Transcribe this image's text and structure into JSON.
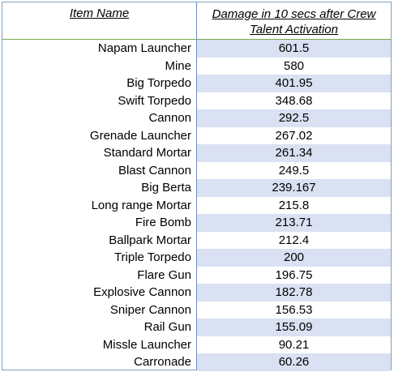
{
  "table": {
    "headers": {
      "item_name": "Item Name",
      "damage_line1": "Damage in 10 secs after Crew",
      "damage_line2": "Talent Activation"
    },
    "rows": [
      {
        "name": "Napam Launcher",
        "value": "601.5"
      },
      {
        "name": "Mine",
        "value": "580"
      },
      {
        "name": "Big Torpedo",
        "value": "401.95"
      },
      {
        "name": "Swift Torpedo",
        "value": "348.68"
      },
      {
        "name": "Cannon",
        "value": "292.5"
      },
      {
        "name": "Grenade Launcher",
        "value": "267.02"
      },
      {
        "name": "Standard Mortar",
        "value": "261.34"
      },
      {
        "name": "Blast Cannon",
        "value": "249.5"
      },
      {
        "name": "Big Berta",
        "value": "239.167"
      },
      {
        "name": "Long range Mortar",
        "value": "215.8"
      },
      {
        "name": "Fire Bomb",
        "value": "213.71"
      },
      {
        "name": "Ballpark Mortar",
        "value": "212.4"
      },
      {
        "name": "Triple Torpedo",
        "value": "200"
      },
      {
        "name": "Flare Gun",
        "value": "196.75"
      },
      {
        "name": "Explosive Cannon",
        "value": "182.78"
      },
      {
        "name": "Sniper Cannon",
        "value": "156.53"
      },
      {
        "name": "Rail Gun",
        "value": "155.09"
      },
      {
        "name": "Missle Launcher",
        "value": "90.21"
      },
      {
        "name": "Carronade",
        "value": "60.26"
      }
    ]
  },
  "colors": {
    "band": "#d9e1f2",
    "header_rule": "#7aa84f",
    "column_rule": "#6f8fbf"
  }
}
